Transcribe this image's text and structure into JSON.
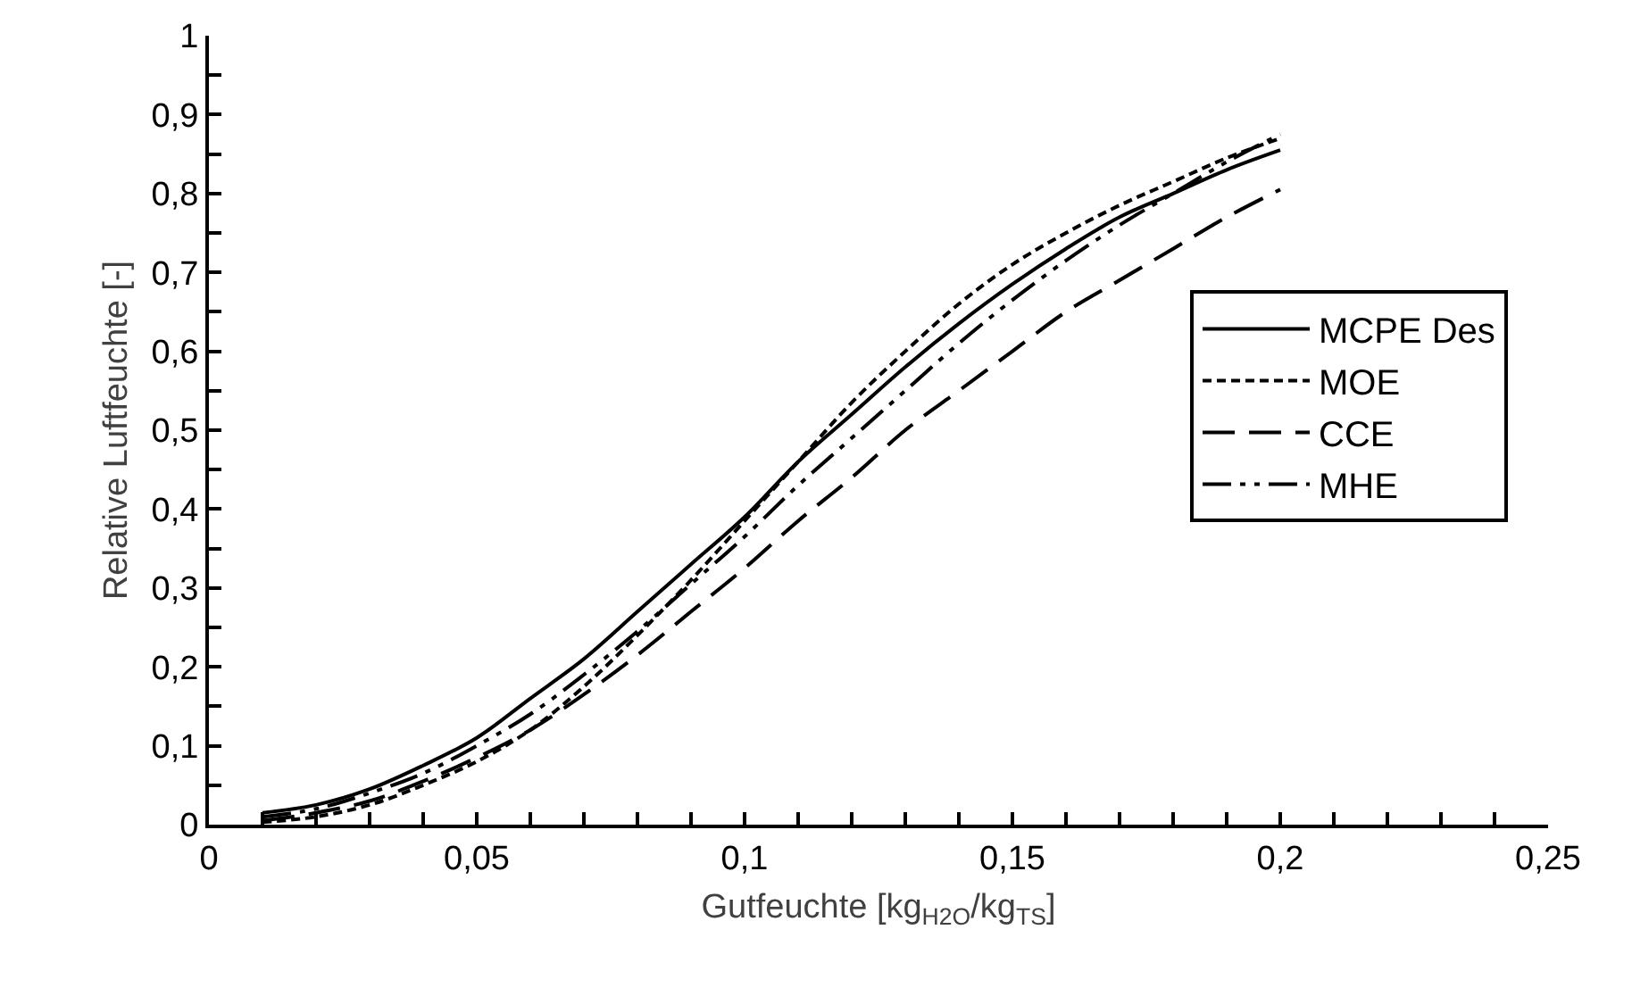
{
  "chart_data": {
    "type": "line",
    "xlabel": "Gutfeuchte [kg$_{H2O}$/kg$_{TS}$]",
    "ylabel": "Relative Luftfeuchte [-]",
    "x": [
      0.01,
      0.02,
      0.03,
      0.04,
      0.05,
      0.06,
      0.07,
      0.08,
      0.09,
      0.1,
      0.11,
      0.12,
      0.13,
      0.14,
      0.15,
      0.16,
      0.17,
      0.18,
      0.19,
      0.2
    ],
    "series": [
      {
        "name": "MCPE Des",
        "color": "#000000",
        "line_style": "solid",
        "values": [
          0.015,
          0.025,
          0.045,
          0.075,
          0.11,
          0.16,
          0.21,
          0.27,
          0.33,
          0.39,
          0.46,
          0.52,
          0.58,
          0.635,
          0.685,
          0.73,
          0.77,
          0.8,
          0.83,
          0.855
        ]
      },
      {
        "name": "MOE",
        "color": "#000000",
        "line_style": "dotted",
        "values": [
          0.003,
          0.01,
          0.025,
          0.05,
          0.08,
          0.12,
          0.175,
          0.24,
          0.31,
          0.385,
          0.46,
          0.535,
          0.6,
          0.66,
          0.71,
          0.75,
          0.785,
          0.815,
          0.845,
          0.87
        ]
      },
      {
        "name": "CCE",
        "color": "#000000",
        "line_style": "dashed",
        "values": [
          0.005,
          0.015,
          0.03,
          0.055,
          0.085,
          0.12,
          0.165,
          0.215,
          0.27,
          0.325,
          0.385,
          0.44,
          0.5,
          0.55,
          0.6,
          0.65,
          0.69,
          0.73,
          0.77,
          0.805
        ]
      },
      {
        "name": "MHE",
        "color": "#000000",
        "line_style": "dashdotdot",
        "values": [
          0.01,
          0.02,
          0.04,
          0.065,
          0.1,
          0.14,
          0.19,
          0.245,
          0.305,
          0.365,
          0.43,
          0.49,
          0.55,
          0.61,
          0.665,
          0.715,
          0.76,
          0.8,
          0.84,
          0.875
        ]
      }
    ],
    "xlim": [
      0,
      0.25
    ],
    "xticks": [
      {
        "value": 0,
        "label": "0"
      },
      {
        "value": 0.01,
        "label": null
      },
      {
        "value": 0.02,
        "label": null
      },
      {
        "value": 0.03,
        "label": null
      },
      {
        "value": 0.04,
        "label": null
      },
      {
        "value": 0.05,
        "label": "0,05"
      },
      {
        "value": 0.06,
        "label": null
      },
      {
        "value": 0.07,
        "label": null
      },
      {
        "value": 0.08,
        "label": null
      },
      {
        "value": 0.09,
        "label": null
      },
      {
        "value": 0.1,
        "label": "0,1"
      },
      {
        "value": 0.11,
        "label": null
      },
      {
        "value": 0.12,
        "label": null
      },
      {
        "value": 0.13,
        "label": null
      },
      {
        "value": 0.14,
        "label": null
      },
      {
        "value": 0.15,
        "label": "0,15"
      },
      {
        "value": 0.16,
        "label": null
      },
      {
        "value": 0.17,
        "label": null
      },
      {
        "value": 0.18,
        "label": null
      },
      {
        "value": 0.19,
        "label": null
      },
      {
        "value": 0.2,
        "label": "0,2"
      },
      {
        "value": 0.21,
        "label": null
      },
      {
        "value": 0.22,
        "label": null
      },
      {
        "value": 0.23,
        "label": null
      },
      {
        "value": 0.24,
        "label": null
      },
      {
        "value": 0.25,
        "label": "0,25"
      }
    ],
    "ylim": [
      0,
      1
    ],
    "yticks": [
      {
        "value": 0,
        "label": "0"
      },
      {
        "value": 0.05,
        "label": null
      },
      {
        "value": 0.1,
        "label": "0,1"
      },
      {
        "value": 0.15,
        "label": null
      },
      {
        "value": 0.2,
        "label": "0,2"
      },
      {
        "value": 0.25,
        "label": null
      },
      {
        "value": 0.3,
        "label": "0,3"
      },
      {
        "value": 0.35,
        "label": null
      },
      {
        "value": 0.4,
        "label": "0,4"
      },
      {
        "value": 0.45,
        "label": null
      },
      {
        "value": 0.5,
        "label": "0,5"
      },
      {
        "value": 0.55,
        "label": null
      },
      {
        "value": 0.6,
        "label": "0,6"
      },
      {
        "value": 0.65,
        "label": null
      },
      {
        "value": 0.7,
        "label": "0,7"
      },
      {
        "value": 0.75,
        "label": null
      },
      {
        "value": 0.8,
        "label": "0,8"
      },
      {
        "value": 0.85,
        "label": null
      },
      {
        "value": 0.9,
        "label": "0,9"
      },
      {
        "value": 0.95,
        "label": null
      },
      {
        "value": 1,
        "label": "1"
      }
    ],
    "legend": "right",
    "marker": "none"
  }
}
